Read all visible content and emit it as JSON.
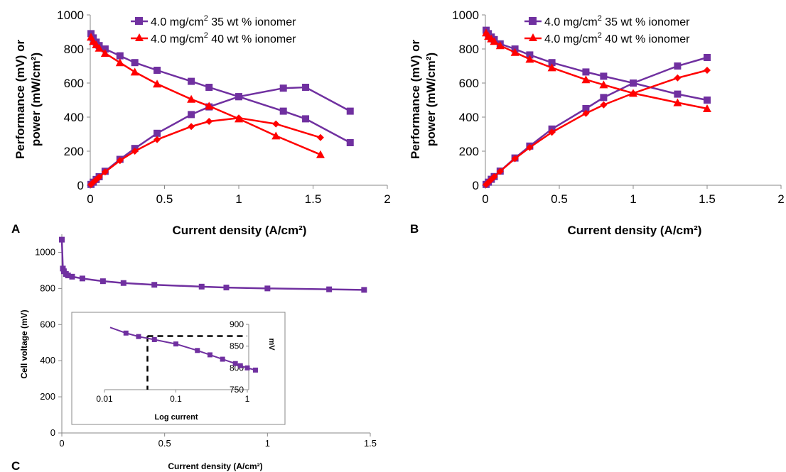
{
  "colors": {
    "purple": "#7030A0",
    "red": "#FF0000",
    "axis": "#888888",
    "dash": "#000000"
  },
  "chart_data": [
    {
      "panel": "A",
      "type": "line",
      "xlabel": "Current density (A/cm²)",
      "ylabel_line1": "Performance (mV) or",
      "ylabel_line2": "power (mW/cm²)",
      "xlim": [
        0,
        2
      ],
      "ylim": [
        0,
        1000
      ],
      "xticks": [
        0,
        0.5,
        1,
        1.5,
        2
      ],
      "xtick_labels": [
        "0",
        "0.5",
        "1",
        "1.5",
        "2"
      ],
      "yticks": [
        0,
        200,
        400,
        600,
        800,
        1000
      ],
      "ytick_labels": [
        "0",
        "200",
        "400",
        "600",
        "800",
        "1000"
      ],
      "legend_position": "top",
      "series": [
        {
          "name": "4.0 mg/cm² 35 wt % ionomer",
          "legend_base": "4.0 mg/cm",
          "legend_sup": "2",
          "legend_rest": " 35 wt % ionomer",
          "color": "purple",
          "marker": "square",
          "x": [
            0.005,
            0.02,
            0.04,
            0.06,
            0.1,
            0.2,
            0.3,
            0.45,
            0.68,
            0.8,
            1.0,
            1.3,
            1.45,
            1.75
          ],
          "y": [
            890,
            865,
            840,
            820,
            800,
            760,
            720,
            675,
            610,
            575,
            520,
            435,
            390,
            250
          ]
        },
        {
          "name": "4.0 mg/cm² 35 wt % ionomer (power)",
          "color": "purple",
          "marker": "square",
          "x": [
            0.005,
            0.02,
            0.04,
            0.06,
            0.1,
            0.2,
            0.3,
            0.45,
            0.68,
            0.8,
            1.0,
            1.3,
            1.45,
            1.75
          ],
          "y": [
            5,
            18,
            34,
            50,
            82,
            152,
            216,
            305,
            415,
            460,
            520,
            570,
            575,
            435
          ]
        },
        {
          "name": "4.0 mg/cm² 40 wt % ionomer",
          "legend_base": "4.0 mg/cm",
          "legend_sup": "2",
          "legend_rest": " 40 wt % ionomer",
          "color": "red",
          "marker": "triangle",
          "x": [
            0.005,
            0.02,
            0.04,
            0.06,
            0.1,
            0.2,
            0.3,
            0.45,
            0.68,
            0.8,
            1.0,
            1.25,
            1.55
          ],
          "y": [
            870,
            845,
            825,
            805,
            775,
            720,
            665,
            595,
            505,
            465,
            390,
            290,
            180
          ]
        },
        {
          "name": "4.0 mg/cm² 40 wt % ionomer (power)",
          "color": "red",
          "marker": "diamond",
          "x": [
            0.005,
            0.02,
            0.04,
            0.06,
            0.1,
            0.2,
            0.3,
            0.45,
            0.68,
            0.8,
            1.0,
            1.25,
            1.55
          ],
          "y": [
            4,
            17,
            33,
            48,
            78,
            145,
            200,
            268,
            345,
            375,
            395,
            360,
            280
          ]
        }
      ]
    },
    {
      "panel": "B",
      "type": "line",
      "xlabel": "Current density (A/cm²)",
      "ylabel_line1": "Performance (mV) or",
      "ylabel_line2": "power (mW/cm²)",
      "xlim": [
        0,
        2
      ],
      "ylim": [
        0,
        1000
      ],
      "xticks": [
        0,
        0.5,
        1,
        1.5,
        2
      ],
      "xtick_labels": [
        "0",
        "0.5",
        "1",
        "1.5",
        "2"
      ],
      "yticks": [
        0,
        200,
        400,
        600,
        800,
        1000
      ],
      "ytick_labels": [
        "0",
        "200",
        "400",
        "600",
        "800",
        "1000"
      ],
      "legend_position": "top",
      "series": [
        {
          "name": "4.0 mg/cm² 35 wt % ionomer",
          "legend_base": "4.0 mg/cm",
          "legend_sup": "2",
          "legend_rest": " 35 wt % ionomer",
          "color": "purple",
          "marker": "square",
          "x": [
            0.005,
            0.02,
            0.04,
            0.06,
            0.1,
            0.2,
            0.3,
            0.45,
            0.68,
            0.8,
            1.0,
            1.3,
            1.5
          ],
          "y": [
            910,
            890,
            870,
            855,
            830,
            800,
            765,
            720,
            665,
            640,
            600,
            535,
            500
          ]
        },
        {
          "name": "4.0 mg/cm² 35 wt % ionomer (power)",
          "color": "purple",
          "marker": "square",
          "x": [
            0.005,
            0.02,
            0.04,
            0.06,
            0.1,
            0.2,
            0.3,
            0.45,
            0.68,
            0.8,
            1.0,
            1.3,
            1.5
          ],
          "y": [
            5,
            18,
            35,
            51,
            83,
            160,
            230,
            330,
            450,
            515,
            600,
            700,
            750
          ]
        },
        {
          "name": "4.0 mg/cm² 40 wt % ionomer",
          "legend_base": "4.0 mg/cm",
          "legend_sup": "2",
          "legend_rest": " 40 wt % ionomer",
          "color": "red",
          "marker": "triangle",
          "x": [
            0.005,
            0.02,
            0.04,
            0.06,
            0.1,
            0.2,
            0.3,
            0.45,
            0.68,
            0.8,
            1.0,
            1.3,
            1.5
          ],
          "y": [
            895,
            875,
            860,
            845,
            820,
            780,
            740,
            690,
            620,
            590,
            540,
            485,
            450
          ]
        },
        {
          "name": "4.0 mg/cm² 40 wt % ionomer (power)",
          "color": "red",
          "marker": "diamond",
          "x": [
            0.005,
            0.02,
            0.04,
            0.06,
            0.1,
            0.2,
            0.3,
            0.45,
            0.68,
            0.8,
            1.0,
            1.3,
            1.5
          ],
          "y": [
            4,
            17,
            34,
            50,
            82,
            156,
            222,
            311,
            422,
            472,
            540,
            630,
            675
          ]
        }
      ]
    },
    {
      "panel": "C",
      "type": "line",
      "xlabel": "Current density (A/cm²)",
      "ylabel": "Cell voltage (mV)",
      "xlim": [
        0,
        1.5
      ],
      "ylim": [
        0,
        1100
      ],
      "xticks": [
        0,
        0.5,
        1,
        1.5
      ],
      "xtick_labels": [
        "0",
        "0.5",
        "1",
        "1.5"
      ],
      "yticks": [
        0,
        200,
        400,
        600,
        800,
        1000
      ],
      "ytick_labels": [
        "0",
        "200",
        "400",
        "600",
        "800",
        "1000"
      ],
      "series": [
        {
          "color": "purple",
          "marker": "square",
          "x": [
            0.0,
            0.005,
            0.01,
            0.02,
            0.03,
            0.05,
            0.1,
            0.2,
            0.3,
            0.45,
            0.68,
            0.8,
            1.0,
            1.3,
            1.47
          ],
          "y": [
            1070,
            910,
            895,
            880,
            872,
            865,
            855,
            840,
            830,
            820,
            810,
            805,
            800,
            795,
            792
          ]
        }
      ],
      "inset": {
        "type": "line",
        "xscale": "log",
        "xlabel": "Log current",
        "ylabel": "mV",
        "xlim": [
          0.01,
          1.6
        ],
        "ylim": [
          750,
          900
        ],
        "xticks": [
          0.01,
          0.1,
          1
        ],
        "xtick_labels": [
          "0.01",
          "0.1",
          "1"
        ],
        "yticks": [
          750,
          800,
          850,
          900
        ],
        "ytick_labels": [
          "750",
          "800",
          "850",
          "900"
        ],
        "series": [
          {
            "color": "purple",
            "marker": "square",
            "x": [
              0.02,
              0.03,
              0.05,
              0.1,
              0.2,
              0.3,
              0.45,
              0.68,
              0.8,
              1.0,
              1.3
            ],
            "y": [
              880,
              872,
              865,
              855,
              840,
              830,
              820,
              810,
              805,
              800,
              795
            ]
          }
        ],
        "reference_line": {
          "x": 0.04,
          "y": 873
        }
      }
    }
  ]
}
